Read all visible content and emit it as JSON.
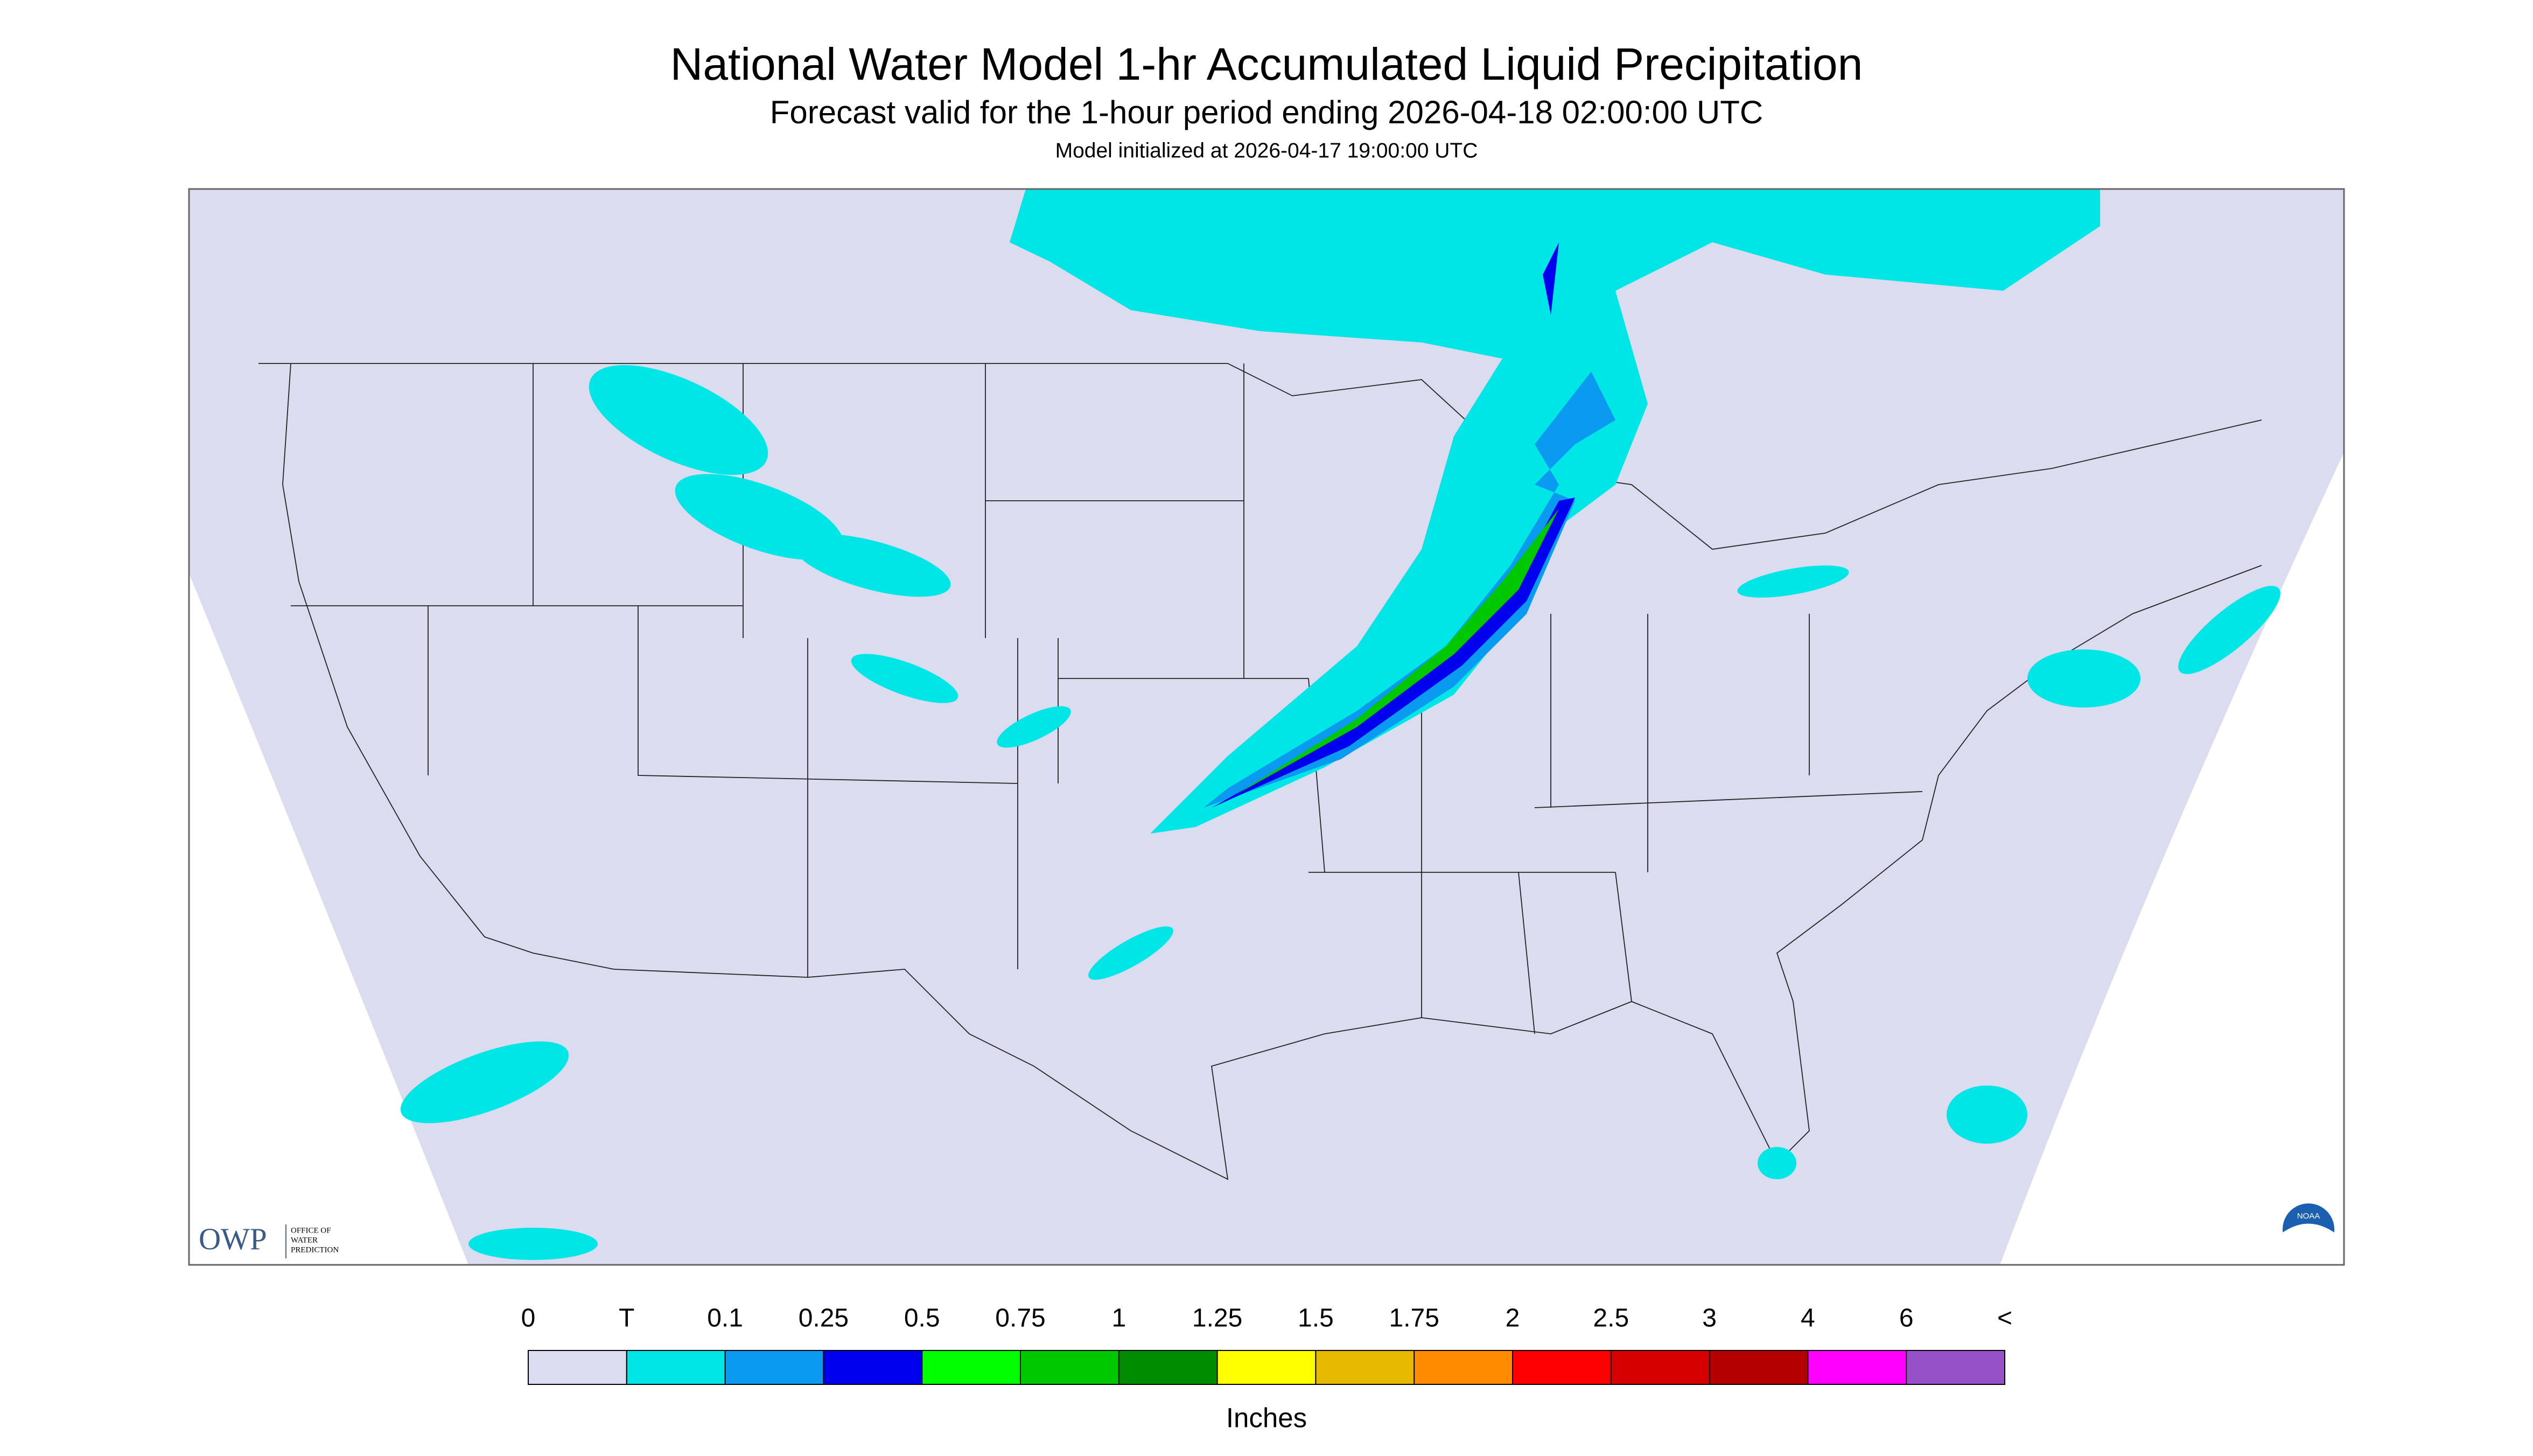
{
  "header": {
    "title": "National Water Model 1-hr Accumulated Liquid Precipitation",
    "subtitle": "Forecast valid for the 1-hour period ending 2026-04-18 02:00:00 UTC",
    "initialized": "Model initialized at 2026-04-17 19:00:00 UTC"
  },
  "legend": {
    "labels": [
      "0",
      "T",
      "0.1",
      "0.25",
      "0.5",
      "0.75",
      "1",
      "1.25",
      "1.5",
      "1.75",
      "2",
      "2.5",
      "3",
      "4",
      "6",
      "<"
    ],
    "colors": [
      "#dcdcf0",
      "#00e6e6",
      "#0a9bf0",
      "#0000ee",
      "#00ff00",
      "#00c800",
      "#008c00",
      "#ffff00",
      "#e6b800",
      "#ff8c00",
      "#ff0000",
      "#d70000",
      "#b40000",
      "#ff00ff",
      "#9650c8"
    ],
    "unit": "Inches"
  },
  "logos": {
    "owp": "OWP",
    "owp_name": [
      "OFFICE OF",
      "WATER",
      "PREDICTION"
    ],
    "noaa": "NOAA"
  }
}
